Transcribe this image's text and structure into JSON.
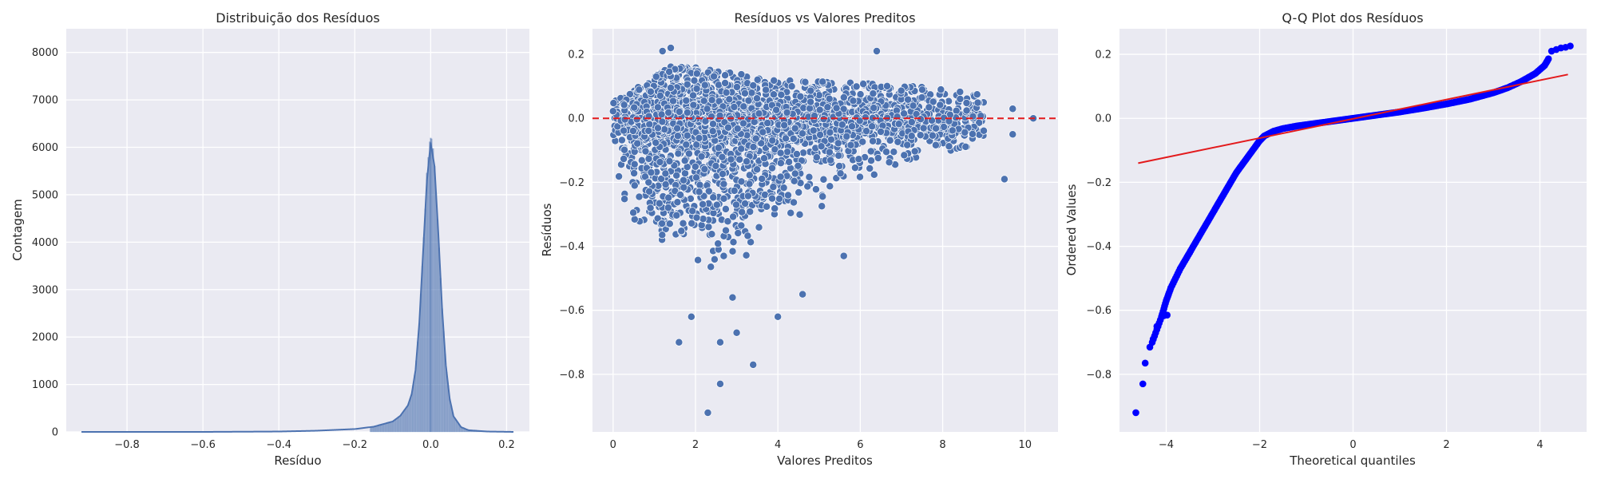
{
  "chart_data": [
    {
      "type": "histogram",
      "title": "Distribuição dos Resíduos",
      "xlabel": "Resíduo",
      "ylabel": "Contagem",
      "xlim": [
        -0.96,
        0.26
      ],
      "ylim": [
        0,
        8500
      ],
      "xticks": [
        -0.8,
        -0.6,
        -0.4,
        -0.2,
        0.0,
        0.2
      ],
      "xtick_labels": [
        "−0.8",
        "−0.6",
        "−0.4",
        "−0.2",
        "0.0",
        "0.2"
      ],
      "yticks": [
        0,
        1000,
        2000,
        3000,
        4000,
        5000,
        6000,
        7000,
        8000
      ],
      "ytick_labels": [
        "0",
        "1000",
        "2000",
        "3000",
        "4000",
        "5000",
        "6000",
        "7000",
        "8000"
      ],
      "kde": true,
      "grid": true,
      "color": "#4c72b0",
      "kde_x": [
        -0.92,
        -0.8,
        -0.6,
        -0.4,
        -0.3,
        -0.2,
        -0.15,
        -0.1,
        -0.08,
        -0.06,
        -0.05,
        -0.04,
        -0.03,
        -0.02,
        -0.01,
        0.0,
        0.01,
        0.02,
        0.03,
        0.04,
        0.05,
        0.06,
        0.08,
        0.1,
        0.15,
        0.22
      ],
      "kde_y": [
        0,
        0,
        0,
        8,
        25,
        60,
        110,
        220,
        340,
        560,
        800,
        1300,
        2300,
        3800,
        5300,
        6100,
        5600,
        4200,
        2600,
        1400,
        700,
        330,
        100,
        35,
        8,
        0
      ],
      "peak_label_count": 6200
    },
    {
      "type": "scatter",
      "title": "Resíduos vs Valores Preditos",
      "xlabel": "Valores Preditos",
      "ylabel": "Resíduos",
      "xlim": [
        -0.5,
        10.8
      ],
      "ylim": [
        -0.98,
        0.28
      ],
      "xticks": [
        0,
        2,
        4,
        6,
        8,
        10
      ],
      "xtick_labels": [
        "0",
        "2",
        "4",
        "6",
        "8",
        "10"
      ],
      "yticks": [
        -0.8,
        -0.6,
        -0.4,
        -0.2,
        0.0,
        0.2
      ],
      "ytick_labels": [
        "−0.8",
        "−0.6",
        "−0.4",
        "−0.2",
        "0.0",
        "0.2"
      ],
      "reference_line": {
        "y": 0,
        "style": "dashed",
        "color": "#e31a1c"
      },
      "grid": true,
      "color": "#4c72b0",
      "outliers": [
        {
          "x": 2.3,
          "y": -0.92
        },
        {
          "x": 2.6,
          "y": -0.83
        },
        {
          "x": 3.4,
          "y": -0.77
        },
        {
          "x": 1.6,
          "y": -0.7
        },
        {
          "x": 2.6,
          "y": -0.7
        },
        {
          "x": 3.0,
          "y": -0.67
        },
        {
          "x": 1.9,
          "y": -0.62
        },
        {
          "x": 4.0,
          "y": -0.62
        },
        {
          "x": 2.9,
          "y": -0.56
        },
        {
          "x": 4.6,
          "y": -0.55
        },
        {
          "x": 9.5,
          "y": -0.19
        },
        {
          "x": 10.2,
          "y": 0.0
        },
        {
          "x": 9.7,
          "y": 0.03
        },
        {
          "x": 9.7,
          "y": -0.05
        },
        {
          "x": 6.4,
          "y": 0.21
        },
        {
          "x": 1.4,
          "y": 0.22
        },
        {
          "x": 1.2,
          "y": 0.21
        },
        {
          "x": 5.6,
          "y": -0.43
        }
      ]
    },
    {
      "type": "scatter",
      "title": "Q-Q Plot dos Resíduos",
      "xlabel": "Theoretical quantiles",
      "ylabel": "Ordered Values",
      "xlim": [
        -5.0,
        5.0
      ],
      "ylim": [
        -0.98,
        0.28
      ],
      "xticks": [
        -4,
        -2,
        0,
        2,
        4
      ],
      "xtick_labels": [
        "−4",
        "−2",
        "0",
        "2",
        "4"
      ],
      "yticks": [
        -0.8,
        -0.6,
        -0.4,
        -0.2,
        0.0,
        0.2
      ],
      "ytick_labels": [
        "−0.8",
        "−0.6",
        "−0.4",
        "−0.2",
        "0.0",
        "0.2"
      ],
      "grid": true,
      "point_color": "#0000ff",
      "line_color": "#e31a1c",
      "fit_line": {
        "x": [
          -4.6,
          4.6
        ],
        "y": [
          -0.14,
          0.137
        ]
      },
      "sample_curve": {
        "x": [
          -4.3,
          -4.1,
          -4.0,
          -3.9,
          -3.7,
          -3.5,
          -3.3,
          -3.1,
          -2.9,
          -2.7,
          -2.5,
          -2.3,
          -2.1,
          -2.0,
          -1.9,
          -1.7,
          -1.5,
          -1.2,
          -0.8,
          -0.4,
          0.0,
          0.5,
          1.0,
          1.5,
          2.0,
          2.5,
          3.0,
          3.3,
          3.6,
          3.9,
          4.1,
          4.2
        ],
        "y": [
          -0.7,
          -0.62,
          -0.57,
          -0.53,
          -0.47,
          -0.42,
          -0.37,
          -0.32,
          -0.27,
          -0.22,
          -0.17,
          -0.13,
          -0.09,
          -0.07,
          -0.055,
          -0.04,
          -0.032,
          -0.024,
          -0.016,
          -0.008,
          0.0,
          0.01,
          0.02,
          0.032,
          0.045,
          0.06,
          0.08,
          0.095,
          0.115,
          0.14,
          0.165,
          0.19
        ]
      },
      "tail_points": [
        {
          "x": -4.65,
          "y": -0.92
        },
        {
          "x": -4.5,
          "y": -0.83
        },
        {
          "x": -4.45,
          "y": -0.765
        },
        {
          "x": -4.35,
          "y": -0.715
        },
        {
          "x": -4.28,
          "y": -0.69
        },
        {
          "x": -4.2,
          "y": -0.65
        },
        {
          "x": -4.1,
          "y": -0.62
        },
        {
          "x": -4.05,
          "y": -0.617
        },
        {
          "x": -3.98,
          "y": -0.615
        },
        {
          "x": 4.25,
          "y": 0.21
        },
        {
          "x": 4.35,
          "y": 0.215
        },
        {
          "x": 4.45,
          "y": 0.22
        },
        {
          "x": 4.55,
          "y": 0.222
        },
        {
          "x": 4.65,
          "y": 0.226
        }
      ]
    }
  ]
}
